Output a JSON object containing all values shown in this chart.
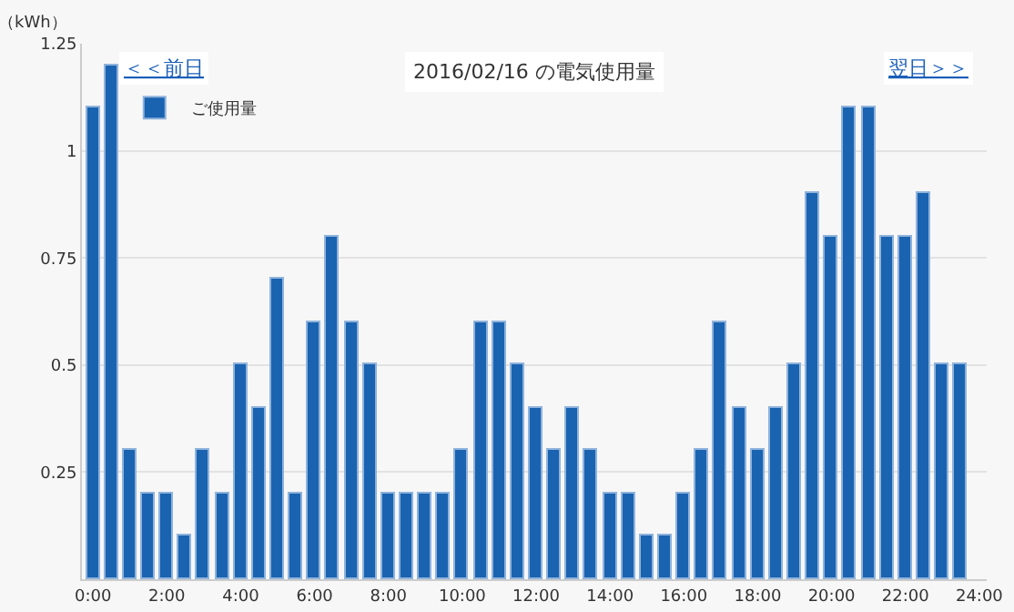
{
  "chart_data": {
    "type": "bar",
    "title": "2016/02/16 の電気使用量",
    "ylabel": "（kWh）",
    "annotations": [
      "＜＜前日",
      "翌日＞＞"
    ],
    "x": [
      0,
      0.5,
      1,
      1.5,
      2,
      2.5,
      3,
      3.5,
      4,
      4.5,
      5,
      5.5,
      6,
      6.5,
      7,
      7.5,
      8,
      8.5,
      9,
      9.5,
      10,
      10.5,
      11,
      11.5,
      12,
      12.5,
      13,
      13.5,
      14,
      14.5,
      15,
      15.5,
      16,
      16.5,
      17,
      17.5,
      18,
      18.5,
      19,
      19.5,
      20,
      20.5,
      21,
      21.5,
      22,
      22.5,
      23,
      23.5
    ],
    "series": [
      {
        "name": "ご使用量",
        "color": "#1a63b0",
        "values": [
          1.1,
          1.2,
          0.3,
          0.2,
          0.2,
          0.1,
          0.3,
          0.2,
          0.5,
          0.4,
          0.7,
          0.2,
          0.6,
          0.8,
          0.6,
          0.5,
          0.2,
          0.2,
          0.2,
          0.2,
          0.3,
          0.6,
          0.6,
          0.5,
          0.4,
          0.3,
          0.4,
          0.3,
          0.2,
          0.2,
          0.1,
          0.1,
          0.2,
          0.3,
          0.6,
          0.4,
          0.3,
          0.4,
          0.5,
          0.9,
          0.8,
          1.1,
          1.1,
          0.8,
          0.8,
          0.9,
          0.5,
          0.5
        ]
      }
    ],
    "xlim": [
      -0.3,
      24.2
    ],
    "xticks": [
      {
        "value": 0,
        "label": "0:00"
      },
      {
        "value": 2,
        "label": "2:00"
      },
      {
        "value": 4,
        "label": "4:00"
      },
      {
        "value": 6,
        "label": "6:00"
      },
      {
        "value": 8,
        "label": "8:00"
      },
      {
        "value": 10,
        "label": "10:00"
      },
      {
        "value": 12,
        "label": "12:00"
      },
      {
        "value": 14,
        "label": "14:00"
      },
      {
        "value": 16,
        "label": "16:00"
      },
      {
        "value": 18,
        "label": "18:00"
      },
      {
        "value": 20,
        "label": "20:00"
      },
      {
        "value": 22,
        "label": "22:00"
      },
      {
        "value": 24,
        "label": "24:00"
      }
    ],
    "ylim": [
      0,
      1.25
    ],
    "yticks": [
      0.25,
      0.5,
      0.75,
      1,
      1.25
    ],
    "grid": "y",
    "legend": "top left"
  }
}
